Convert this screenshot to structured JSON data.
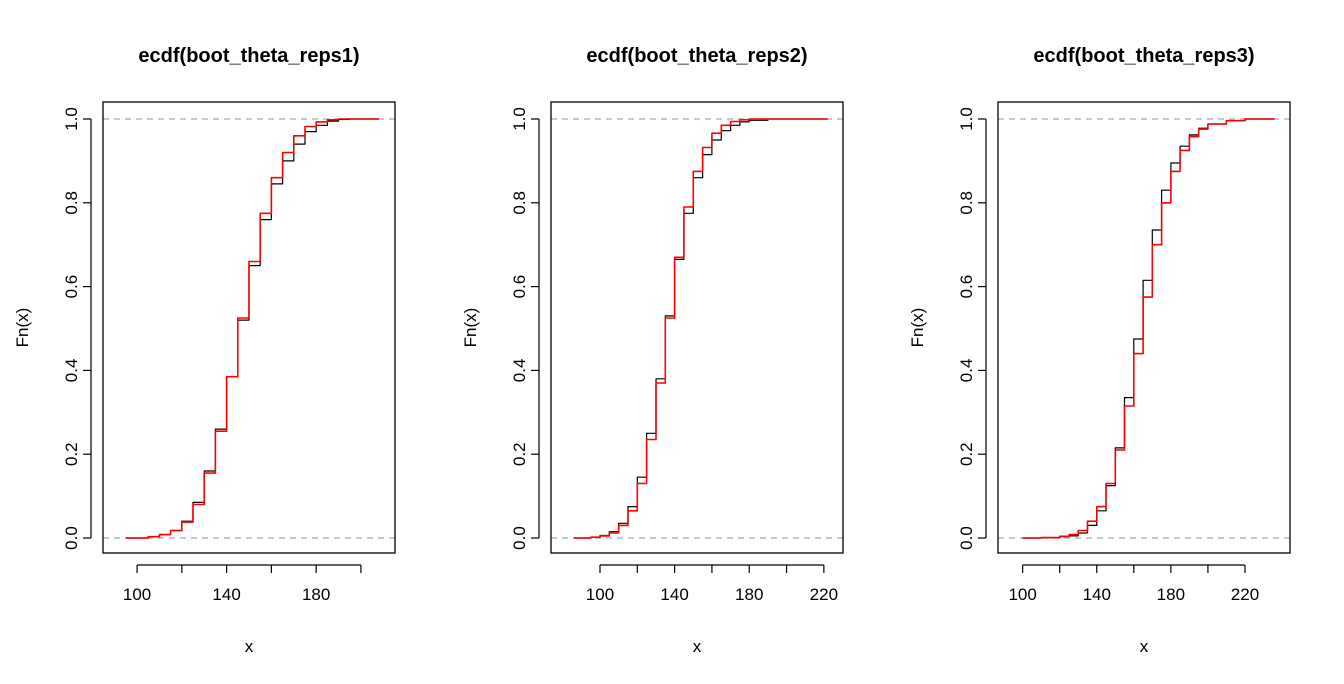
{
  "chart_data": [
    {
      "type": "line",
      "title": "ecdf(boot_theta_reps1)",
      "xlabel": "x",
      "ylabel": "Fn(x)",
      "xlim": [
        90,
        210
      ],
      "ylim": [
        0,
        1
      ],
      "xticks": [
        100,
        120,
        140,
        160,
        180,
        200
      ],
      "xtick_labels": [
        "100",
        "",
        "140",
        "",
        "180",
        ""
      ],
      "yticks": [
        0,
        0.2,
        0.4,
        0.6,
        0.8,
        1
      ],
      "ytick_labels": [
        "0.0",
        "0.2",
        "0.4",
        "0.6",
        "0.8",
        "1.0"
      ],
      "reference_lines": [
        0,
        1
      ],
      "grid": false,
      "series": [
        {
          "color": "#000000",
          "x": [
            95,
            105,
            110,
            115,
            120,
            125,
            130,
            135,
            140,
            145,
            150,
            155,
            160,
            165,
            170,
            175,
            180,
            185,
            190,
            195,
            200,
            208
          ],
          "y": [
            0.0,
            0.003,
            0.008,
            0.018,
            0.04,
            0.085,
            0.16,
            0.26,
            0.385,
            0.52,
            0.65,
            0.76,
            0.845,
            0.9,
            0.94,
            0.97,
            0.985,
            0.995,
            0.999,
            1.0,
            1.0,
            1.0
          ]
        },
        {
          "color": "#ff0000",
          "x": [
            95,
            105,
            110,
            115,
            120,
            125,
            130,
            135,
            140,
            145,
            150,
            155,
            160,
            165,
            170,
            175,
            180,
            185,
            190,
            195,
            200,
            208
          ],
          "y": [
            0.0,
            0.003,
            0.008,
            0.018,
            0.038,
            0.08,
            0.155,
            0.255,
            0.385,
            0.525,
            0.66,
            0.775,
            0.86,
            0.92,
            0.96,
            0.982,
            0.993,
            0.998,
            1.0,
            1.0,
            1.0,
            1.0
          ]
        }
      ]
    },
    {
      "type": "line",
      "title": "ecdf(boot_theta_reps2)",
      "xlabel": "x",
      "ylabel": "Fn(x)",
      "xlim": [
        80,
        224
      ],
      "ylim": [
        0,
        1
      ],
      "xticks": [
        100,
        120,
        140,
        160,
        180,
        200,
        220
      ],
      "xtick_labels": [
        "100",
        "",
        "140",
        "",
        "180",
        "",
        "220"
      ],
      "yticks": [
        0,
        0.2,
        0.4,
        0.6,
        0.8,
        1
      ],
      "ytick_labels": [
        "0.0",
        "0.2",
        "0.4",
        "0.6",
        "0.8",
        "1.0"
      ],
      "reference_lines": [
        0,
        1
      ],
      "grid": false,
      "series": [
        {
          "color": "#000000",
          "x": [
            86,
            95,
            100,
            105,
            110,
            115,
            120,
            125,
            130,
            135,
            140,
            145,
            150,
            155,
            160,
            165,
            170,
            175,
            180,
            190,
            200,
            222
          ],
          "y": [
            0.0,
            0.002,
            0.006,
            0.015,
            0.035,
            0.075,
            0.145,
            0.25,
            0.38,
            0.53,
            0.665,
            0.775,
            0.86,
            0.915,
            0.95,
            0.972,
            0.985,
            0.993,
            0.997,
            1.0,
            1.0,
            1.0
          ]
        },
        {
          "color": "#ff0000",
          "x": [
            86,
            95,
            100,
            105,
            110,
            115,
            120,
            125,
            130,
            135,
            140,
            145,
            150,
            155,
            160,
            165,
            170,
            175,
            180,
            190,
            200,
            222
          ],
          "y": [
            0.0,
            0.002,
            0.005,
            0.012,
            0.03,
            0.065,
            0.13,
            0.235,
            0.37,
            0.525,
            0.67,
            0.79,
            0.875,
            0.932,
            0.966,
            0.985,
            0.994,
            0.998,
            1.0,
            1.0,
            1.0,
            1.0
          ]
        }
      ]
    },
    {
      "type": "line",
      "title": "ecdf(boot_theta_reps3)",
      "xlabel": "x",
      "ylabel": "Fn(x)",
      "xlim": [
        93,
        238
      ],
      "ylim": [
        0,
        1
      ],
      "xticks": [
        100,
        120,
        140,
        160,
        180,
        200,
        220
      ],
      "xtick_labels": [
        "100",
        "",
        "140",
        "",
        "180",
        "",
        "220"
      ],
      "yticks": [
        0,
        0.2,
        0.4,
        0.6,
        0.8,
        1
      ],
      "ytick_labels": [
        "0.0",
        "0.2",
        "0.4",
        "0.6",
        "0.8",
        "1.0"
      ],
      "reference_lines": [
        0,
        1
      ],
      "grid": false,
      "series": [
        {
          "color": "#000000",
          "x": [
            100,
            110,
            120,
            125,
            130,
            135,
            140,
            145,
            150,
            155,
            160,
            165,
            170,
            175,
            180,
            185,
            190,
            195,
            200,
            210,
            220,
            236
          ],
          "y": [
            0.0,
            0.001,
            0.003,
            0.005,
            0.012,
            0.03,
            0.065,
            0.125,
            0.215,
            0.335,
            0.475,
            0.615,
            0.735,
            0.83,
            0.895,
            0.935,
            0.962,
            0.978,
            0.988,
            0.996,
            1.0,
            1.0
          ]
        },
        {
          "color": "#ff0000",
          "x": [
            100,
            110,
            120,
            125,
            130,
            135,
            140,
            145,
            150,
            155,
            160,
            165,
            170,
            175,
            180,
            185,
            190,
            195,
            200,
            210,
            220,
            236
          ],
          "y": [
            0.0,
            0.001,
            0.004,
            0.008,
            0.018,
            0.04,
            0.075,
            0.13,
            0.21,
            0.315,
            0.44,
            0.575,
            0.7,
            0.8,
            0.875,
            0.925,
            0.958,
            0.976,
            0.988,
            0.996,
            1.0,
            1.0
          ]
        }
      ]
    }
  ]
}
